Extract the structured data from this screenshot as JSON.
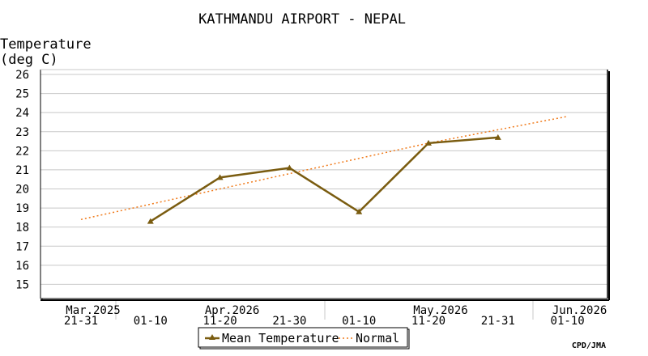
{
  "chart_data": {
    "type": "line",
    "title": "KATHMANDU AIRPORT - NEPAL",
    "ylabel": [
      "Temperature",
      "(deg C)"
    ],
    "ylim": [
      14,
      26
    ],
    "yticks": [
      15,
      16,
      17,
      18,
      19,
      20,
      21,
      22,
      23,
      24,
      25,
      26
    ],
    "grid": true,
    "x_categories": [
      {
        "month": "Mar.2025",
        "dekad": "21-31"
      },
      {
        "month": "",
        "dekad": "01-10"
      },
      {
        "month": "Apr.2026",
        "dekad": "11-20"
      },
      {
        "month": "",
        "dekad": "21-30"
      },
      {
        "month": "",
        "dekad": "01-10"
      },
      {
        "month": "May.2026",
        "dekad": "11-20"
      },
      {
        "month": "",
        "dekad": "21-31"
      },
      {
        "month": "Jun.2026",
        "dekad": "01-10"
      }
    ],
    "series": [
      {
        "name": "Mean Temperature",
        "color": "#7a5c10",
        "style": "solid-triangle",
        "values": [
          null,
          18.3,
          20.6,
          21.1,
          18.8,
          22.4,
          22.7,
          null
        ]
      },
      {
        "name": "Normal",
        "color": "#f07a1a",
        "style": "dotted",
        "values": [
          18.4,
          19.2,
          20.0,
          20.8,
          21.6,
          22.4,
          23.1,
          23.8
        ]
      }
    ],
    "legend_position": "bottom-center",
    "source": "CPD/JMA"
  }
}
